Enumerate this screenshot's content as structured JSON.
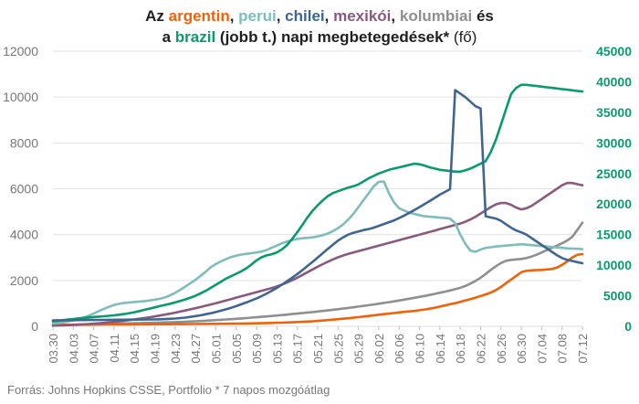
{
  "title": {
    "parts": [
      {
        "text": "Az ",
        "color": "#1f1f1f",
        "bold": true
      },
      {
        "text": "argentin",
        "color": "#f0620a",
        "bold": true
      },
      {
        "text": ", ",
        "color": "#1f1f1f",
        "bold": true
      },
      {
        "text": "perui",
        "color": "#7fbcbc",
        "bold": true
      },
      {
        "text": ", ",
        "color": "#1f1f1f",
        "bold": true
      },
      {
        "text": "chilei",
        "color": "#3f6691",
        "bold": true
      },
      {
        "text": ", ",
        "color": "#1f1f1f",
        "bold": true
      },
      {
        "text": "mexikói",
        "color": "#8a5a7e",
        "bold": true
      },
      {
        "text": ", ",
        "color": "#1f1f1f",
        "bold": true
      },
      {
        "text": "kolumbiai",
        "color": "#8f8f8f",
        "bold": true
      },
      {
        "text": " és",
        "color": "#1f1f1f",
        "bold": true
      },
      {
        "text": "BR",
        "color": "",
        "bold": false
      },
      {
        "text": "a ",
        "color": "#1f1f1f",
        "bold": true
      },
      {
        "text": "brazil",
        "color": "#0a9a6e",
        "bold": true
      },
      {
        "text": " (jobb t.) napi megbetegedések* ",
        "color": "#1f1f1f",
        "bold": true
      },
      {
        "text": "(fő)",
        "color": "#1f1f1f",
        "bold": false
      }
    ]
  },
  "source": "Forrás: Johns Hopkins CSSE, Portfolio   * 7 napos mozgóátlag",
  "chart_data": {
    "type": "line",
    "x": [
      "03.30",
      "03.31",
      "04.01",
      "04.02",
      "04.03",
      "04.04",
      "04.05",
      "04.06",
      "04.07",
      "04.08",
      "04.09",
      "04.10",
      "04.11",
      "04.12",
      "04.13",
      "04.14",
      "04.15",
      "04.16",
      "04.17",
      "04.18",
      "04.19",
      "04.20",
      "04.21",
      "04.22",
      "04.23",
      "04.24",
      "04.25",
      "04.26",
      "04.27",
      "04.28",
      "04.29",
      "04.30",
      "05.01",
      "05.02",
      "05.03",
      "05.04",
      "05.05",
      "05.06",
      "05.07",
      "05.08",
      "05.09",
      "05.10",
      "05.11",
      "05.12",
      "05.13",
      "05.14",
      "05.15",
      "05.16",
      "05.17",
      "05.18",
      "05.19",
      "05.20",
      "05.21",
      "05.22",
      "05.23",
      "05.24",
      "05.25",
      "05.26",
      "05.27",
      "05.28",
      "05.29",
      "05.30",
      "05.31",
      "06.01",
      "06.02",
      "06.03",
      "06.04",
      "06.05",
      "06.06",
      "06.07",
      "06.08",
      "06.09",
      "06.10",
      "06.11",
      "06.12",
      "06.13",
      "06.14",
      "06.15",
      "06.16",
      "06.17",
      "06.18",
      "06.19",
      "06.20",
      "06.21",
      "06.22",
      "06.23",
      "06.24",
      "06.25",
      "06.26",
      "06.27",
      "06.28",
      "06.29",
      "06.30",
      "07.01",
      "07.02",
      "07.03",
      "07.04",
      "07.05",
      "07.06",
      "07.07",
      "07.08",
      "07.09",
      "07.10",
      "07.11",
      "07.12"
    ],
    "x_tick_labels": [
      "03.30",
      "04.03",
      "04.07",
      "04.11",
      "04.15",
      "04.19",
      "04.23",
      "04.27",
      "05.01",
      "05.05",
      "05.09",
      "05.13",
      "05.17",
      "05.21",
      "05.25",
      "05.29",
      "06.02",
      "06.06",
      "06.10",
      "06.14",
      "06.18",
      "06.22",
      "06.26",
      "06.30",
      "07.04",
      "07.08",
      "07.12"
    ],
    "y_left": {
      "range": [
        0,
        12000
      ],
      "ticks": [
        0,
        2000,
        4000,
        6000,
        8000,
        10000,
        12000
      ],
      "tick_labels": [
        "0",
        "2000",
        "4000",
        "6000",
        "8000",
        "10000",
        "12000"
      ]
    },
    "y_right": {
      "range": [
        0,
        45000
      ],
      "ticks": [
        0,
        5000,
        10000,
        15000,
        20000,
        25000,
        30000,
        35000,
        40000,
        45000
      ],
      "tick_labels": [
        "0",
        "5000",
        "10000",
        "15000",
        "20000",
        "25000",
        "30000",
        "35000",
        "40000",
        "45000"
      ],
      "color": "#0a9a6e"
    },
    "grid": true,
    "series": [
      {
        "name": "argentin",
        "color": "#f0620a",
        "axis": "left",
        "values": [
          60,
          62,
          64,
          66,
          67,
          68,
          70,
          72,
          74,
          76,
          78,
          79,
          80,
          82,
          83,
          84,
          85,
          86,
          87,
          88,
          90,
          91,
          92,
          93,
          94,
          96,
          97,
          98,
          100,
          102,
          104,
          106,
          108,
          110,
          112,
          114,
          117,
          120,
          124,
          128,
          132,
          137,
          142,
          148,
          154,
          160,
          168,
          176,
          186,
          196,
          208,
          220,
          236,
          252,
          270,
          290,
          310,
          330,
          352,
          376,
          400,
          425,
          450,
          478,
          505,
          530,
          555,
          580,
          605,
          628,
          650,
          670,
          700,
          735,
          770,
          810,
          860,
          910,
          960,
          1010,
          1070,
          1130,
          1190,
          1250,
          1320,
          1390,
          1470,
          1580,
          1720,
          1880,
          2040,
          2200,
          2360,
          2420,
          2440,
          2450,
          2460,
          2480,
          2500,
          2560,
          2680,
          2830,
          3000,
          3120,
          3150
        ]
      },
      {
        "name": "perui",
        "color": "#7fbcbc",
        "axis": "left",
        "values": [
          120,
          145,
          170,
          210,
          260,
          310,
          380,
          460,
          560,
          660,
          760,
          850,
          930,
          980,
          1020,
          1040,
          1060,
          1080,
          1100,
          1130,
          1160,
          1200,
          1260,
          1350,
          1460,
          1590,
          1730,
          1880,
          2030,
          2200,
          2380,
          2580,
          2720,
          2830,
          2930,
          3020,
          3080,
          3130,
          3160,
          3190,
          3220,
          3260,
          3330,
          3430,
          3530,
          3620,
          3700,
          3760,
          3810,
          3840,
          3860,
          3880,
          3920,
          3980,
          4050,
          4150,
          4280,
          4440,
          4660,
          4900,
          5200,
          5500,
          5800,
          6100,
          6300,
          6320,
          5800,
          5400,
          5150,
          5050,
          4950,
          4900,
          4850,
          4800,
          4780,
          4760,
          4740,
          4720,
          4700,
          4500,
          4000,
          3600,
          3300,
          3250,
          3350,
          3420,
          3450,
          3480,
          3500,
          3520,
          3540,
          3560,
          3580,
          3560,
          3540,
          3520,
          3500,
          3480,
          3460,
          3440,
          3420,
          3400,
          3390,
          3380,
          3370
        ]
      },
      {
        "name": "chilei",
        "color": "#3f6691",
        "axis": "left",
        "values": [
          260,
          262,
          264,
          266,
          268,
          270,
          272,
          274,
          276,
          278,
          280,
          282,
          284,
          286,
          288,
          290,
          292,
          294,
          296,
          298,
          300,
          305,
          315,
          325,
          340,
          360,
          380,
          410,
          445,
          480,
          525,
          570,
          620,
          680,
          740,
          810,
          880,
          960,
          1040,
          1130,
          1220,
          1320,
          1430,
          1550,
          1680,
          1820,
          1970,
          2120,
          2280,
          2450,
          2630,
          2810,
          3000,
          3190,
          3380,
          3560,
          3740,
          3880,
          4000,
          4080,
          4140,
          4200,
          4240,
          4300,
          4380,
          4460,
          4540,
          4620,
          4720,
          4830,
          4950,
          5070,
          5200,
          5330,
          5460,
          5600,
          5740,
          5860,
          5980,
          10300,
          10150,
          10000,
          9800,
          9600,
          9500,
          4800,
          4750,
          4700,
          4600,
          4450,
          4300,
          4180,
          4100,
          4000,
          3850,
          3700,
          3550,
          3400,
          3250,
          3100,
          2980,
          2900,
          2850,
          2800,
          2750
        ]
      },
      {
        "name": "mexikói",
        "color": "#8a5a7e",
        "axis": "left",
        "values": [
          30,
          35,
          42,
          50,
          60,
          72,
          86,
          100,
          116,
          132,
          150,
          170,
          192,
          216,
          242,
          270,
          300,
          330,
          362,
          396,
          432,
          470,
          510,
          552,
          596,
          642,
          690,
          740,
          790,
          842,
          896,
          952,
          1010,
          1070,
          1130,
          1190,
          1250,
          1310,
          1370,
          1430,
          1490,
          1550,
          1610,
          1670,
          1740,
          1820,
          1910,
          2010,
          2120,
          2240,
          2360,
          2480,
          2600,
          2710,
          2820,
          2920,
          3010,
          3090,
          3160,
          3220,
          3280,
          3340,
          3400,
          3460,
          3520,
          3580,
          3640,
          3700,
          3760,
          3820,
          3880,
          3940,
          4000,
          4060,
          4120,
          4180,
          4240,
          4300,
          4360,
          4420,
          4480,
          4560,
          4660,
          4780,
          4920,
          5060,
          5200,
          5320,
          5380,
          5380,
          5300,
          5180,
          5100,
          5150,
          5250,
          5400,
          5550,
          5700,
          5850,
          6000,
          6150,
          6250,
          6250,
          6200,
          6150
        ]
      },
      {
        "name": "kolumbiai",
        "color": "#8f8f8f",
        "axis": "left",
        "values": [
          50,
          55,
          60,
          65,
          70,
          75,
          80,
          85,
          90,
          95,
          100,
          105,
          110,
          116,
          122,
          128,
          134,
          140,
          146,
          152,
          158,
          164,
          170,
          176,
          182,
          190,
          200,
          210,
          220,
          232,
          244,
          256,
          270,
          284,
          298,
          312,
          328,
          344,
          360,
          378,
          396,
          414,
          432,
          450,
          470,
          490,
          512,
          534,
          556,
          578,
          600,
          622,
          646,
          670,
          694,
          720,
          746,
          772,
          800,
          830,
          860,
          890,
          922,
          954,
          986,
          1020,
          1054,
          1090,
          1126,
          1164,
          1202,
          1242,
          1282,
          1324,
          1368,
          1414,
          1462,
          1512,
          1564,
          1618,
          1680,
          1760,
          1860,
          1980,
          2120,
          2280,
          2460,
          2620,
          2760,
          2860,
          2900,
          2920,
          2940,
          2980,
          3040,
          3120,
          3220,
          3320,
          3420,
          3520,
          3620,
          3740,
          3900,
          4200,
          4520
        ]
      },
      {
        "name": "brazil",
        "color": "#0a9a6e",
        "axis": "right",
        "values": [
          800,
          900,
          1000,
          1100,
          1200,
          1300,
          1380,
          1450,
          1520,
          1580,
          1650,
          1720,
          1800,
          1900,
          2000,
          2150,
          2300,
          2500,
          2700,
          2900,
          3100,
          3300,
          3500,
          3700,
          3900,
          4150,
          4400,
          4700,
          5000,
          5400,
          5800,
          6300,
          6800,
          7300,
          7800,
          8200,
          8600,
          9000,
          9500,
          10100,
          10800,
          11300,
          11600,
          11800,
          12100,
          12600,
          13300,
          14300,
          15400,
          16600,
          17800,
          18900,
          19800,
          20600,
          21300,
          21800,
          22100,
          22400,
          22700,
          22900,
          23200,
          23700,
          24200,
          24600,
          25000,
          25300,
          25600,
          25800,
          26000,
          26200,
          26400,
          26600,
          26500,
          26300,
          26000,
          25800,
          25600,
          25500,
          25400,
          25300,
          25300,
          25500,
          25800,
          26200,
          26600,
          27000,
          28500,
          30500,
          33000,
          35500,
          38000,
          39000,
          39500,
          39500,
          39400,
          39300,
          39200,
          39100,
          39000,
          38900,
          38800,
          38700,
          38600,
          38500,
          38400
        ]
      }
    ]
  }
}
